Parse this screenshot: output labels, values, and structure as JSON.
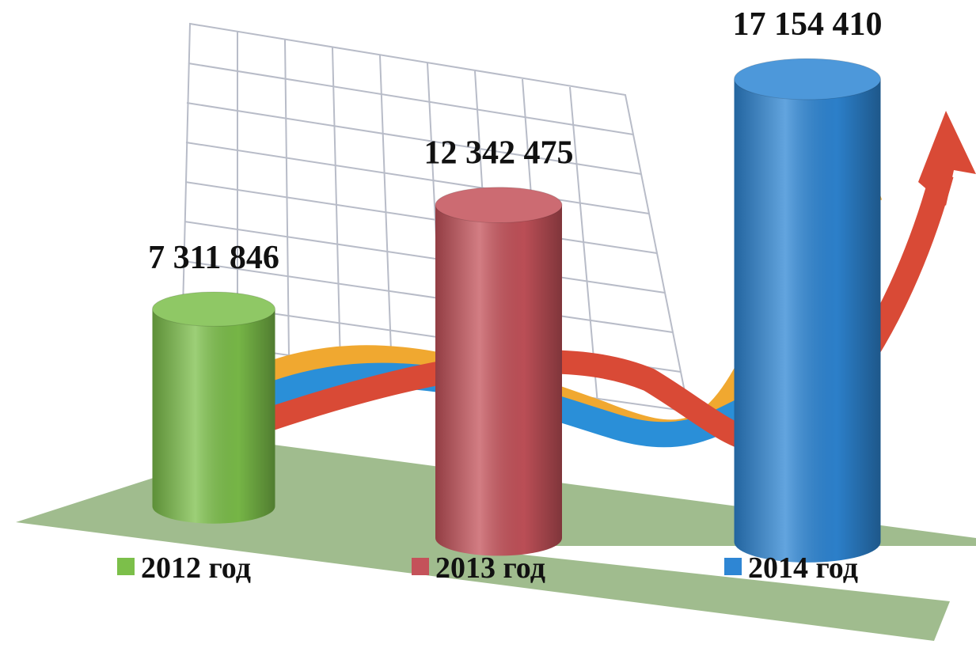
{
  "chart_data": {
    "type": "bar",
    "categories": [
      "2012 год",
      "2013 год",
      "2014 год"
    ],
    "values": [
      7311846,
      12342475,
      17154410
    ],
    "value_labels": [
      "7 311 846",
      "12 342 475",
      "17 154 410"
    ],
    "colors": [
      "#7cbf4a",
      "#c4525a",
      "#2e86d4"
    ]
  }
}
